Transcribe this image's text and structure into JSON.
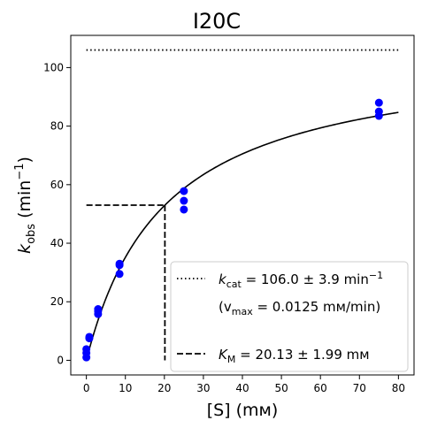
{
  "chart_data": {
    "type": "scatter",
    "title": "I20C",
    "xlabel": "[S] (mм)",
    "ylabel_main": "k",
    "ylabel_sub": "obs",
    "ylabel_unit_open": " (min",
    "ylabel_unit_sup": "−1",
    "ylabel_unit_close": ")",
    "xlim": [
      -4,
      84
    ],
    "ylim": [
      -5,
      111
    ],
    "x_ticks": [
      0,
      10,
      20,
      30,
      40,
      50,
      60,
      70,
      80
    ],
    "y_ticks": [
      0,
      20,
      40,
      60,
      80,
      100
    ],
    "point_color": "#0000ff",
    "line_color": "#000000",
    "points": [
      {
        "x": 0.0,
        "y": 1.0
      },
      {
        "x": 0.0,
        "y": 2.5
      },
      {
        "x": 0.0,
        "y": 3.8
      },
      {
        "x": 0.75,
        "y": 7.5
      },
      {
        "x": 0.75,
        "y": 8.0
      },
      {
        "x": 3.0,
        "y": 15.8
      },
      {
        "x": 3.0,
        "y": 16.8
      },
      {
        "x": 3.0,
        "y": 17.5
      },
      {
        "x": 8.5,
        "y": 29.5
      },
      {
        "x": 8.5,
        "y": 32.5
      },
      {
        "x": 8.5,
        "y": 33.0
      },
      {
        "x": 25.0,
        "y": 51.5
      },
      {
        "x": 25.0,
        "y": 54.5
      },
      {
        "x": 25.0,
        "y": 57.8
      },
      {
        "x": 75.0,
        "y": 83.5
      },
      {
        "x": 75.0,
        "y": 85.0
      },
      {
        "x": 75.0,
        "y": 88.0
      }
    ],
    "fit_curve": {
      "kcat": 106.0,
      "KM": 20.13,
      "x_range": [
        0,
        80
      ]
    },
    "kcat_line": {
      "y": 106.0,
      "x_range": [
        0,
        80
      ]
    },
    "km_marker": {
      "x": 20.13,
      "y": 53.0
    },
    "legend": {
      "position": "lower-right",
      "kcat_prefix": "k",
      "kcat_sub": "cat",
      "kcat_text": " = 106.0 ± 3.9 min",
      "kcat_sup": "−1",
      "vmax_open": "(v",
      "vmax_sub": "max",
      "vmax_text": " = 0.0125 mм/min)",
      "km_prefix": "K",
      "km_sub": "M",
      "km_text": " = 20.13 ± 1.99 mм"
    }
  }
}
